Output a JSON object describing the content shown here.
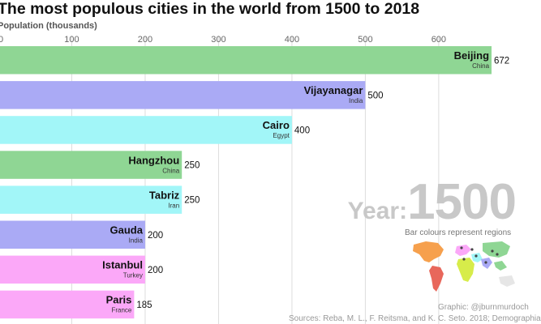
{
  "title": "The most populous cities in the world from 1500 to 2018",
  "chart_data": {
    "type": "bar",
    "orientation": "horizontal",
    "title": "The most populous cities in the world from 1500 to 2018",
    "xlabel": "Population (thousands)",
    "ylabel": "",
    "xlim": [
      0,
      672
    ],
    "ticks": [
      0,
      100,
      200,
      300,
      400,
      500,
      600
    ],
    "categories": [
      "Beijing",
      "Vijayanagar",
      "Cairo",
      "Hangzhou",
      "Tabriz",
      "Gauda",
      "Istanbul",
      "Paris"
    ],
    "regions": [
      "China",
      "India",
      "Egypt",
      "China",
      "Iran",
      "India",
      "Turkey",
      "France"
    ],
    "values": [
      672,
      500,
      400,
      250,
      250,
      200,
      200,
      185
    ],
    "colors": [
      "#8fd694",
      "#aaaaf5",
      "#a2f6f8",
      "#8fd694",
      "#a2f6f8",
      "#aaaaf5",
      "#fba8f8",
      "#fba8f8"
    ]
  },
  "year_label": "Year:",
  "year_value": "1500",
  "legend_title": "Bar colours represent regions",
  "credit": "Graphic: @jburnmurdoch",
  "sources": "Sources: Reba, M. L., F. Reitsma, and K. C. Seto. 2018; Demographia"
}
